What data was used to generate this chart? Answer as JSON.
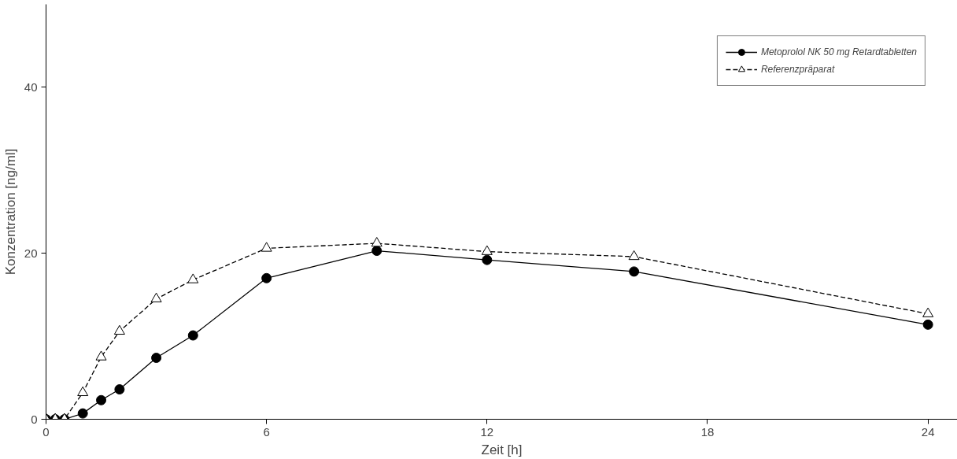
{
  "chart_data": {
    "type": "line",
    "xlabel": "Zeit [h]",
    "ylabel": "Konzentration [ng/ml]",
    "x": [
      0,
      0.25,
      0.5,
      1,
      1.5,
      2,
      3,
      4,
      6,
      9,
      12,
      16,
      24
    ],
    "series": [
      {
        "name": "Metoprolol NK 50 mg Retardtabletten",
        "color": "#000000",
        "marker": "circle",
        "line_style": "solid",
        "values": [
          0,
          0,
          0,
          0.7,
          2.3,
          3.6,
          7.4,
          10.1,
          17.0,
          20.3,
          19.2,
          17.8,
          11.4
        ]
      },
      {
        "name": "Referenzpräparat",
        "color": "#000000",
        "marker": "triangle",
        "line_style": "dashed",
        "values": [
          0,
          0,
          0,
          3.2,
          7.5,
          10.6,
          14.5,
          16.8,
          20.6,
          21.2,
          20.2,
          19.6,
          12.7
        ]
      }
    ],
    "xlim": [
      0,
      24.8
    ],
    "ylim": [
      0,
      50
    ],
    "xticks": [
      0,
      6,
      12,
      18,
      24
    ],
    "yticks": [
      0,
      20,
      40
    ],
    "grid": false,
    "legend": "top right"
  }
}
